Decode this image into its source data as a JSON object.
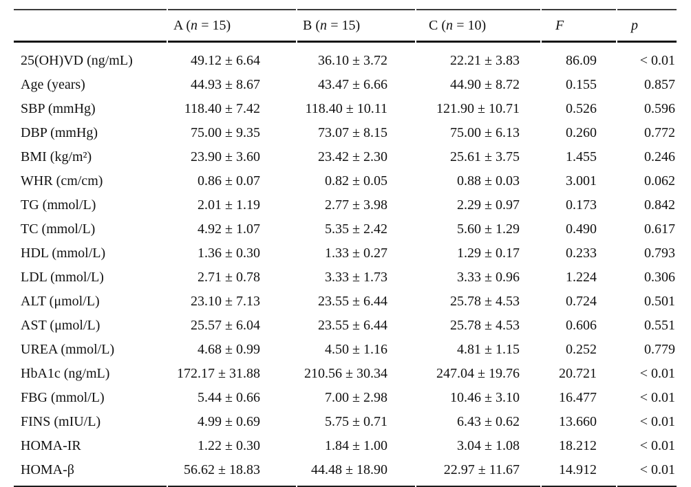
{
  "table": {
    "columns": [
      {
        "pre": "A (",
        "it": "n",
        "post": " = 15)"
      },
      {
        "pre": "B (",
        "it": "n",
        "post": " = 15)"
      },
      {
        "pre": "C (",
        "it": "n",
        "post": " = 10)"
      },
      {
        "pre": "",
        "it": "F",
        "post": ""
      },
      {
        "pre": "",
        "it": "p",
        "post": ""
      }
    ],
    "rows": [
      {
        "label": "25(OH)VD (ng/mL)",
        "a": "49.12 ± 6.64",
        "b": "36.10 ± 3.72",
        "c": "22.21 ± 3.83",
        "f": "86.09",
        "p": "< 0.01"
      },
      {
        "label": "Age (years)",
        "a": "44.93 ± 8.67",
        "b": "43.47 ± 6.66",
        "c": "44.90 ± 8.72",
        "f": "0.155",
        "p": "0.857"
      },
      {
        "label": "SBP (mmHg)",
        "a": "118.40 ± 7.42",
        "b": "118.40 ± 10.11",
        "c": "121.90 ± 10.71",
        "f": "0.526",
        "p": "0.596"
      },
      {
        "label": "DBP (mmHg)",
        "a": "75.00 ± 9.35",
        "b": "73.07 ± 8.15",
        "c": "75.00 ± 6.13",
        "f": "0.260",
        "p": "0.772"
      },
      {
        "label": "BMI (kg/m²)",
        "a": "23.90 ± 3.60",
        "b": "23.42 ± 2.30",
        "c": "25.61 ± 3.75",
        "f": "1.455",
        "p": "0.246"
      },
      {
        "label": "WHR (cm/cm)",
        "a": "0.86 ± 0.07",
        "b": "0.82 ± 0.05",
        "c": "0.88 ± 0.03",
        "f": "3.001",
        "p": "0.062"
      },
      {
        "label": "TG (mmol/L)",
        "a": "2.01 ± 1.19",
        "b": "2.77 ± 3.98",
        "c": "2.29 ± 0.97",
        "f": "0.173",
        "p": "0.842"
      },
      {
        "label": "TC (mmol/L)",
        "a": "4.92 ± 1.07",
        "b": "5.35 ± 2.42",
        "c": "5.60 ± 1.29",
        "f": "0.490",
        "p": "0.617"
      },
      {
        "label": "HDL (mmol/L)",
        "a": "1.36 ± 0.30",
        "b": "1.33 ± 0.27",
        "c": "1.29 ± 0.17",
        "f": "0.233",
        "p": "0.793"
      },
      {
        "label": "LDL (mmol/L)",
        "a": "2.71 ± 0.78",
        "b": "3.33 ± 1.73",
        "c": "3.33 ± 0.96",
        "f": "1.224",
        "p": "0.306"
      },
      {
        "label": "ALT (μmol/L)",
        "a": "23.10 ± 7.13",
        "b": "23.55 ± 6.44",
        "c": "25.78 ± 4.53",
        "f": "0.724",
        "p": "0.501"
      },
      {
        "label": "AST (μmol/L)",
        "a": "25.57 ± 6.04",
        "b": "23.55 ± 6.44",
        "c": "25.78 ± 4.53",
        "f": "0.606",
        "p": "0.551"
      },
      {
        "label": "UREA (mmol/L)",
        "a": "4.68 ± 0.99",
        "b": "4.50 ± 1.16",
        "c": "4.81 ± 1.15",
        "f": "0.252",
        "p": "0.779"
      },
      {
        "label": "HbA1c (ng/mL)",
        "a": "172.17 ± 31.88",
        "b": "210.56 ± 30.34",
        "c": "247.04 ± 19.76",
        "f": "20.721",
        "p": "< 0.01"
      },
      {
        "label": "FBG (mmol/L)",
        "a": "5.44 ± 0.66",
        "b": "7.00 ± 2.98",
        "c": "10.46 ± 3.10",
        "f": "16.477",
        "p": "< 0.01"
      },
      {
        "label": "FINS (mIU/L)",
        "a": "4.99 ± 0.69",
        "b": "5.75 ± 0.71",
        "c": "6.43 ± 0.62",
        "f": "13.660",
        "p": "< 0.01"
      },
      {
        "label": "HOMA-IR",
        "a": "1.22 ± 0.30",
        "b": "1.84 ± 1.00",
        "c": "3.04 ± 1.08",
        "f": "18.212",
        "p": "< 0.01"
      },
      {
        "label": "HOMA-β",
        "a": "56.62 ± 18.83",
        "b": "44.48 ± 18.90",
        "c": "22.97 ± 11.67",
        "f": "14.912",
        "p": "< 0.01"
      }
    ]
  }
}
